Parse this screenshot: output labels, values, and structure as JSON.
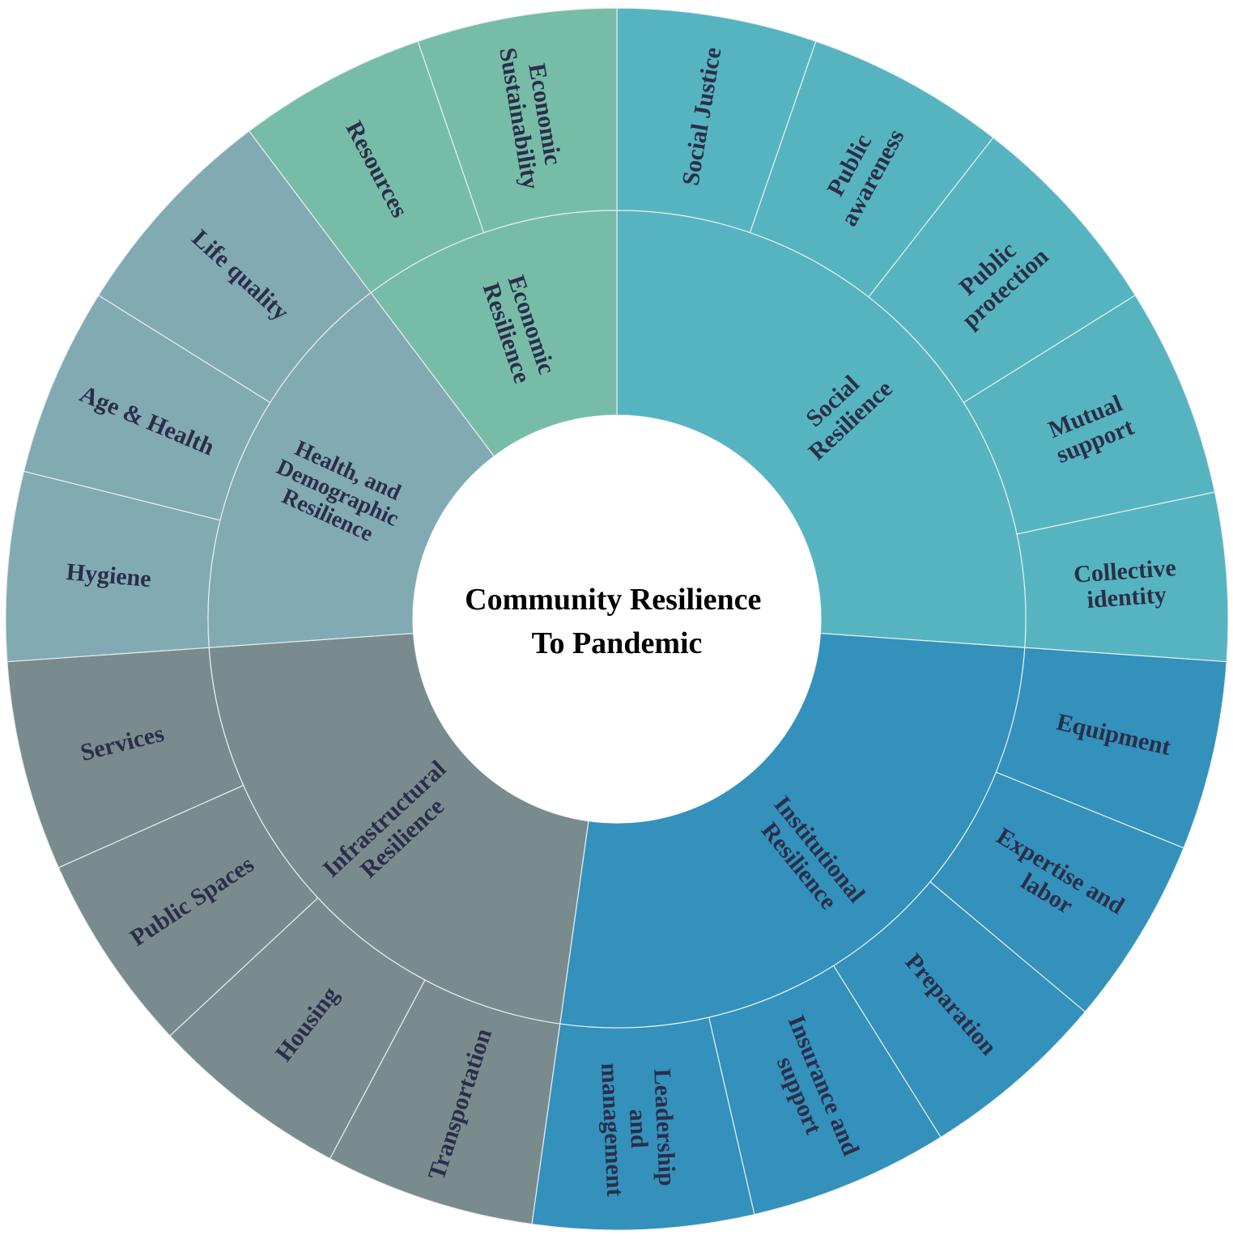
{
  "center_title": [
    "Community Resilience",
    "To Pandemic"
  ],
  "colors": {
    "social": "#56b4c1",
    "institutional": "#3391bb",
    "infrastructural": "#7a8b8d",
    "health": "#82aab3",
    "economic": "#77bca7",
    "text": "#2b2e4a",
    "divider": "#e6eef0"
  },
  "categories": [
    {
      "key": "social",
      "label": [
        "Social",
        "Resilience"
      ],
      "items": [
        {
          "label": [
            "Social Justice"
          ]
        },
        {
          "label": [
            "Public",
            "awareness"
          ]
        },
        {
          "label": [
            "Public",
            "protection"
          ]
        },
        {
          "label": [
            "Mutual",
            "support"
          ]
        },
        {
          "label": [
            "Collective",
            "identity"
          ]
        }
      ]
    },
    {
      "key": "institutional",
      "label": [
        "Institutional",
        "Resilience"
      ],
      "items": [
        {
          "label": [
            "Equipment"
          ]
        },
        {
          "label": [
            "Expertise and",
            "labor"
          ]
        },
        {
          "label": [
            "Preparation"
          ]
        },
        {
          "label": [
            "Insurance and",
            "support"
          ]
        },
        {
          "label": [
            "Leadership",
            "and",
            "management"
          ]
        }
      ]
    },
    {
      "key": "infrastructural",
      "label": [
        "Infrastructural",
        "Resilience"
      ],
      "items": [
        {
          "label": [
            "Transportation"
          ]
        },
        {
          "label": [
            "Housing"
          ]
        },
        {
          "label": [
            "Public Spaces"
          ]
        },
        {
          "label": [
            "Services"
          ]
        }
      ]
    },
    {
      "key": "health",
      "label": [
        "Health, and",
        "Demographic",
        "Resilience"
      ],
      "items": [
        {
          "label": [
            "Hygiene"
          ]
        },
        {
          "label": [
            "Age & Health"
          ]
        },
        {
          "label": [
            "Life quality"
          ]
        }
      ]
    },
    {
      "key": "economic",
      "label": [
        "Economic",
        "Resilience"
      ],
      "items": [
        {
          "label": [
            "Resources"
          ]
        },
        {
          "label": [
            "Economic",
            "Sustainability"
          ]
        }
      ]
    }
  ]
}
